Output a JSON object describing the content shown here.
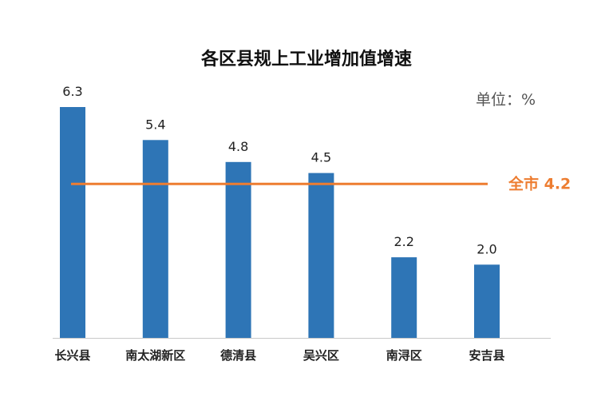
{
  "chart_data": {
    "type": "bar",
    "title": "各区县规上工业增加值增速",
    "unit_label": "单位：%",
    "categories": [
      "长兴县",
      "南太湖新区",
      "德清县",
      "吴兴区",
      "南浔区",
      "安吉县"
    ],
    "values": [
      6.3,
      5.4,
      4.8,
      4.5,
      2.2,
      2.0
    ],
    "value_labels": [
      "6.3",
      "5.4",
      "4.8",
      "4.5",
      "2.2",
      "2.0"
    ],
    "ylim": [
      0,
      6.3
    ],
    "grid": false,
    "reference_line": {
      "value": 4.2,
      "label": "全市 4.2"
    },
    "colors": {
      "bar": "#2e75b6",
      "reference_line": "#ed7d31",
      "axis": "#c8c8c8"
    }
  }
}
